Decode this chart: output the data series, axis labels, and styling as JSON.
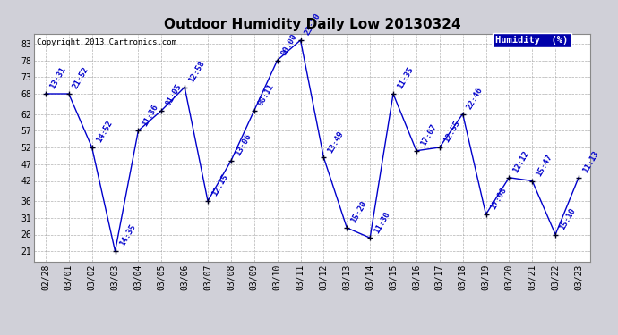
{
  "title": "Outdoor Humidity Daily Low 20130324",
  "copyright": "Copyright 2013 Cartronics.com",
  "legend_label": "Humidity  (%)",
  "x_labels": [
    "02/28",
    "03/01",
    "03/02",
    "03/03",
    "03/04",
    "03/05",
    "03/06",
    "03/07",
    "03/08",
    "03/09",
    "03/10",
    "03/11",
    "03/12",
    "03/13",
    "03/14",
    "03/15",
    "03/16",
    "03/17",
    "03/18",
    "03/19",
    "03/20",
    "03/21",
    "03/22",
    "03/23"
  ],
  "y_values": [
    68,
    68,
    52,
    21,
    57,
    63,
    70,
    36,
    48,
    63,
    78,
    84,
    49,
    28,
    25,
    68,
    51,
    52,
    62,
    32,
    43,
    42,
    26,
    43
  ],
  "time_labels": [
    "13:31",
    "21:52",
    "14:52",
    "14:35",
    "11:36",
    "01:05",
    "12:58",
    "12:15",
    "13:06",
    "08:11",
    "00:00",
    "23:30",
    "13:49",
    "15:20",
    "11:30",
    "11:35",
    "17:07",
    "12:55",
    "22:46",
    "17:08",
    "12:12",
    "15:47",
    "15:10",
    "11:13"
  ],
  "ylim": [
    18,
    86
  ],
  "yticks": [
    21,
    26,
    31,
    36,
    42,
    47,
    52,
    57,
    62,
    68,
    73,
    78,
    83
  ],
  "line_color": "#0000cc",
  "bg_color": "#ffffff",
  "outer_bg": "#d0d0d8",
  "grid_color": "#aaaaaa",
  "title_fontsize": 11,
  "tick_fontsize": 7,
  "legend_bg": "#0000aa",
  "legend_fg": "#ffffff"
}
